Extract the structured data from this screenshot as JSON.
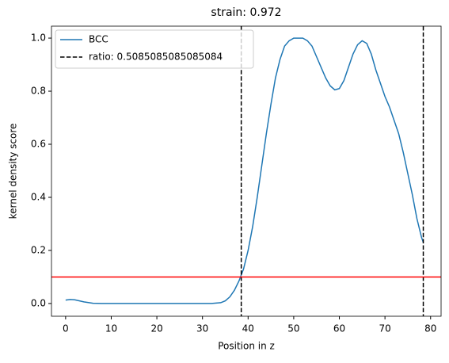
{
  "chart_data": {
    "type": "line",
    "title": "strain: 0.972",
    "x_label": "Position in z",
    "y_label": "kernel density score",
    "x": [
      0,
      1,
      2,
      4,
      6,
      8,
      10,
      15,
      20,
      25,
      30,
      32,
      34,
      35,
      36,
      37,
      38,
      39,
      40,
      41,
      42,
      43,
      44,
      45,
      46,
      47,
      48,
      49,
      50,
      51,
      52,
      53,
      54,
      55,
      56,
      57,
      58,
      59,
      60,
      61,
      62,
      63,
      64,
      65,
      66,
      67,
      68,
      69,
      70,
      71,
      72,
      73,
      74,
      75,
      76,
      77,
      78,
      78.4
    ],
    "series": [
      {
        "name": "BCC",
        "color": "#1f77b4",
        "values": [
          0.013,
          0.015,
          0.014,
          0.006,
          0.001,
          0,
          0,
          0,
          0,
          0,
          0,
          0,
          0.003,
          0.01,
          0.025,
          0.05,
          0.085,
          0.13,
          0.2,
          0.29,
          0.4,
          0.52,
          0.64,
          0.75,
          0.85,
          0.92,
          0.97,
          0.99,
          1.0,
          1.0,
          1.0,
          0.99,
          0.97,
          0.93,
          0.89,
          0.85,
          0.82,
          0.805,
          0.81,
          0.84,
          0.89,
          0.94,
          0.975,
          0.99,
          0.98,
          0.94,
          0.88,
          0.83,
          0.78,
          0.74,
          0.69,
          0.64,
          0.57,
          0.49,
          0.41,
          0.32,
          0.25,
          0.23
        ]
      }
    ],
    "vlines": {
      "name": "ratio: 0.5085085085085084",
      "x": [
        38.5,
        78.4
      ],
      "color": "#000000"
    },
    "hline": {
      "y": 0.1,
      "color": "#ff0000"
    },
    "xlim": [
      -3.1,
      82.3
    ],
    "ylim": [
      -0.048,
      1.045
    ],
    "xticks": [
      0,
      10,
      20,
      30,
      40,
      50,
      60,
      70,
      80
    ],
    "yticks": [
      {
        "value": 0,
        "label": "0.0"
      },
      {
        "value": 0.2,
        "label": "0.2"
      },
      {
        "value": 0.4,
        "label": "0.4"
      },
      {
        "value": 0.6,
        "label": "0.6"
      },
      {
        "value": 0.8,
        "label": "0.8"
      },
      {
        "value": 1,
        "label": "1.0"
      }
    ],
    "legend": "upper left"
  }
}
